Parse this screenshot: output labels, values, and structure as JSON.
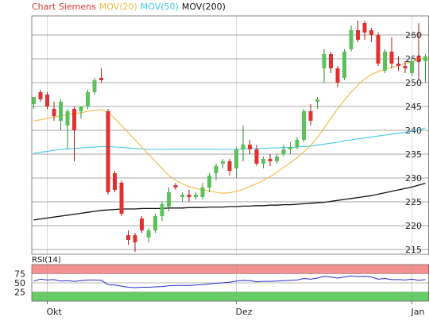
{
  "colors": {
    "up": "#5cc05c",
    "down": "#e03030",
    "ma20": "#f0b840",
    "ma50": "#40c8e8",
    "ma200": "#111111",
    "rsi_line": "#2a2ad0",
    "rsi_overbought_zone": "#f59090",
    "rsi_oversold_zone": "#66cc66",
    "title": "#e03030",
    "grid": "#888888"
  },
  "chart_data": [
    {
      "type": "candlestick",
      "legend": [
        {
          "label": "Chart Siemens",
          "color": "#e03030"
        },
        {
          "label": "MOV(20)",
          "color": "#f0b840"
        },
        {
          "label": "MOV(50)",
          "color": "#40c8e8"
        },
        {
          "label": "MOV(200)",
          "color": "#111111"
        }
      ],
      "y_axis_side": "right",
      "ylim": [
        214,
        264
      ],
      "yticks": [
        215,
        220,
        225,
        230,
        235,
        240,
        245,
        250,
        255,
        260
      ],
      "xlim": [
        0,
        83
      ],
      "xticks": [
        {
          "x": 2,
          "label": "Okt"
        },
        {
          "x": 30,
          "label": "Dez"
        },
        {
          "x": 56,
          "label": "Jan"
        }
      ],
      "grid": true,
      "candles": [
        [
          245.5,
          247,
          244.5,
          247
        ],
        [
          248,
          248.5,
          246,
          246.5
        ],
        [
          247.5,
          248,
          244.5,
          245
        ],
        [
          244.5,
          246,
          242,
          243
        ],
        [
          242,
          246.5,
          240,
          246
        ],
        [
          241,
          244.5,
          236,
          244
        ],
        [
          244.5,
          245,
          233.5,
          240
        ],
        [
          244,
          245,
          242.5,
          245
        ],
        [
          245,
          248.5,
          244.5,
          248
        ],
        [
          248,
          251,
          247.5,
          250.5
        ],
        [
          251,
          253,
          250,
          250.5
        ],
        [
          244,
          244.5,
          226.5,
          227
        ],
        [
          231,
          231.5,
          227,
          227.5
        ],
        [
          229,
          229.5,
          222,
          222.5
        ],
        [
          218,
          219,
          216,
          217
        ],
        [
          218,
          218.5,
          214.5,
          216.5
        ],
        [
          221.5,
          222,
          218.5,
          219
        ],
        [
          217.5,
          219.5,
          216.5,
          219
        ],
        [
          219,
          222.5,
          218.5,
          222
        ],
        [
          222,
          225,
          221,
          224.5
        ],
        [
          224,
          228,
          223,
          227
        ],
        [
          228.5,
          229,
          227.5,
          228
        ],
        [
          226,
          227,
          225,
          226.5
        ],
        [
          226.5,
          227.5,
          225,
          226
        ],
        [
          226,
          227,
          225.5,
          226.5
        ],
        [
          226,
          229,
          225.5,
          228
        ],
        [
          228,
          231,
          227,
          230.5
        ],
        [
          231,
          233,
          229.5,
          232.5
        ],
        [
          233,
          234,
          232,
          233.5
        ],
        [
          233.5,
          234,
          230.5,
          231.5
        ],
        [
          232,
          236.5,
          230,
          236
        ],
        [
          236,
          241,
          233.5,
          237
        ],
        [
          237,
          238,
          235,
          236
        ],
        [
          236,
          237,
          232.5,
          233
        ],
        [
          233,
          234.5,
          232,
          234
        ],
        [
          234,
          235,
          232.5,
          233.5
        ],
        [
          233.5,
          235,
          233,
          234.5
        ],
        [
          235,
          237,
          234.5,
          236
        ],
        [
          236,
          237.5,
          235,
          236.5
        ],
        [
          236.5,
          238.5,
          236,
          238
        ],
        [
          238,
          244.5,
          237.5,
          244
        ],
        [
          244,
          245.5,
          241,
          242
        ],
        [
          246,
          247,
          244.5,
          246.5
        ],
        [
          253,
          257,
          250,
          256
        ],
        [
          256,
          256.5,
          252,
          253
        ],
        [
          253,
          253.5,
          249,
          250
        ],
        [
          251,
          257,
          250.5,
          256.5
        ],
        [
          257,
          262,
          256.5,
          261
        ],
        [
          261,
          263,
          258.5,
          259
        ],
        [
          262.5,
          263,
          259,
          260.5
        ],
        [
          261,
          261.5,
          258.5,
          260
        ],
        [
          260,
          260.5,
          253.5,
          254
        ],
        [
          252.5,
          257,
          252,
          256.5
        ],
        [
          256.5,
          259.5,
          253,
          254
        ],
        [
          254,
          255.5,
          252.5,
          253.5
        ],
        [
          253.5,
          254.5,
          252,
          253
        ],
        [
          252,
          255.5,
          251.5,
          254.5
        ],
        [
          255.5,
          262.5,
          250.5,
          254.5
        ],
        [
          254.5,
          256,
          250,
          255.5
        ]
      ],
      "ma20": [
        242,
        242.2,
        242.5,
        242.8,
        243,
        243.3,
        243.5,
        243.7,
        244,
        244.2,
        244.3,
        243.8,
        242.5,
        241,
        239.5,
        238,
        236.5,
        235,
        233.5,
        232,
        230.5,
        229.5,
        228.8,
        228.2,
        227.8,
        227.5,
        227.3,
        227,
        226.8,
        226.9,
        227.2,
        227.6,
        228.2,
        228.8,
        229.5,
        230.3,
        231.2,
        232.2,
        233.2,
        234.3,
        235.5,
        236.8,
        238.5,
        240.5,
        242.5,
        244.5,
        246.3,
        248,
        249.5,
        250.8,
        251.7,
        252.3,
        252.8,
        253.2,
        253.6,
        254,
        254.4,
        254.8,
        255.3
      ],
      "ma50": [
        235.2,
        235.4,
        235.6,
        235.8,
        236,
        236.1,
        236.2,
        236.3,
        236.4,
        236.5,
        236.6,
        236.6,
        236.5,
        236.4,
        236.3,
        236.2,
        236.1,
        236,
        236,
        236,
        236,
        236,
        236,
        236,
        236,
        236,
        236,
        236,
        236,
        236,
        236,
        236.1,
        236.2,
        236.2,
        236.2,
        236.3,
        236.3,
        236.4,
        236.4,
        236.5,
        236.6,
        236.7,
        236.9,
        237.1,
        237.3,
        237.5,
        237.8,
        238,
        238.2,
        238.4,
        238.6,
        238.8,
        239,
        239.2,
        239.4,
        239.6,
        239.8,
        240.1,
        240.5
      ],
      "ma200": [
        221.2,
        221.4,
        221.6,
        221.8,
        222,
        222.2,
        222.4,
        222.6,
        222.8,
        223,
        223.2,
        223.3,
        223.4,
        223.5,
        223.5,
        223.5,
        223.6,
        223.6,
        223.6,
        223.6,
        223.7,
        223.7,
        223.7,
        223.8,
        223.8,
        223.8,
        223.9,
        223.9,
        223.9,
        224,
        224,
        224.1,
        224.1,
        224.2,
        224.2,
        224.3,
        224.3,
        224.4,
        224.4,
        224.5,
        224.6,
        224.7,
        224.8,
        224.9,
        225.1,
        225.3,
        225.5,
        225.7,
        225.9,
        226.1,
        226.3,
        226.6,
        226.9,
        227.2,
        227.5,
        227.8,
        228.1,
        228.5,
        228.9
      ]
    },
    {
      "type": "line",
      "legend": [
        {
          "label": "RSI(14)",
          "color": "#111111"
        }
      ],
      "y_axis_side": "left",
      "ylim": [
        0,
        100
      ],
      "yticks": [
        25,
        50,
        75
      ],
      "zones": [
        {
          "from": 75,
          "to": 100,
          "color": "#f59090"
        },
        {
          "from": 0,
          "to": 25,
          "color": "#66cc66"
        }
      ],
      "values": [
        55,
        60,
        58,
        59,
        55,
        56,
        54,
        56,
        58,
        58,
        57,
        45,
        44,
        41,
        38,
        37,
        38,
        38,
        39,
        40,
        42,
        43,
        43,
        43,
        44,
        45,
        47,
        49,
        50,
        52,
        55,
        57,
        56,
        53,
        54,
        54,
        55,
        56,
        57,
        58,
        62,
        60,
        63,
        68,
        66,
        63,
        66,
        69,
        67,
        68,
        66,
        60,
        62,
        59,
        59,
        58,
        60,
        57,
        59
      ]
    }
  ]
}
